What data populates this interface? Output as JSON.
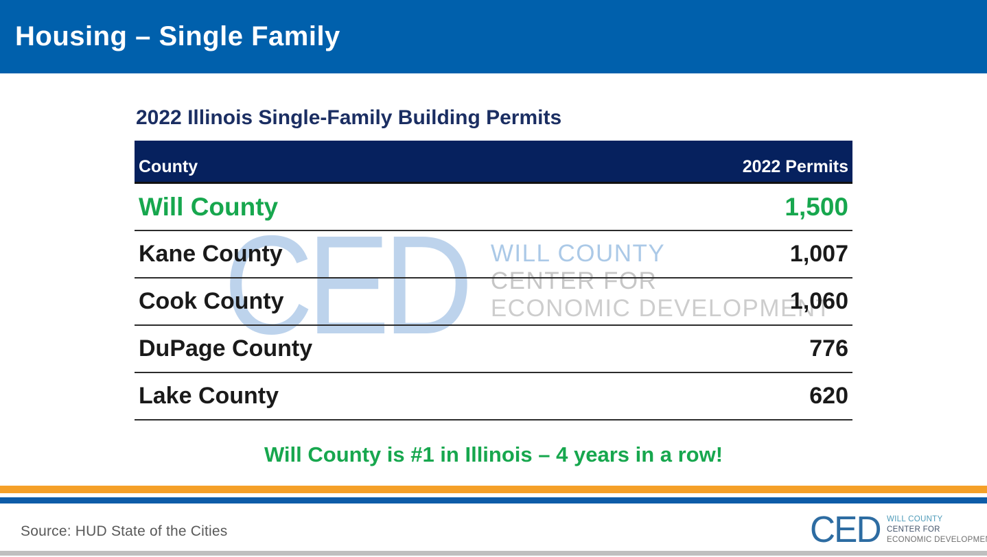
{
  "header": {
    "title": "Housing – Single Family"
  },
  "table": {
    "title": "2022 Illinois Single-Family Building Permits",
    "columns": [
      "County",
      "2022 Permits"
    ],
    "rows": [
      {
        "county": "Will County",
        "permits": "1,500",
        "highlight": true
      },
      {
        "county": "Kane County",
        "permits": "1,007",
        "highlight": false
      },
      {
        "county": "Cook County",
        "permits": "1,060",
        "highlight": false
      },
      {
        "county": "DuPage County",
        "permits": "776",
        "highlight": false
      },
      {
        "county": "Lake County",
        "permits": "620",
        "highlight": false
      }
    ]
  },
  "tagline": "Will County is #1 in Illinois – 4 years in a row!",
  "watermark": {
    "ced": "CED",
    "lines": [
      "WILL COUNTY",
      "CENTER FOR",
      "ECONOMIC DEVELOPMENT"
    ]
  },
  "footer": {
    "source": "Source: HUD State of the Cities",
    "logo": {
      "ced": "CED",
      "lines": [
        "WILL COUNTY",
        "CENTER FOR",
        "ECONOMIC DEVELOPMENT"
      ]
    }
  },
  "colors": {
    "header_bar_blue": "#0060AC",
    "table_header_navy": "#06215E",
    "title_navy": "#1B2E62",
    "highlight_green": "#17A74E",
    "watermark_blue": "#BDD3EC",
    "watermark_gray": "#C9C9C9",
    "orange_bar": "#F5A028",
    "blue_bar": "#0E5CA8",
    "source_gray": "#595959",
    "logo_blue": "#2D6CA2"
  }
}
